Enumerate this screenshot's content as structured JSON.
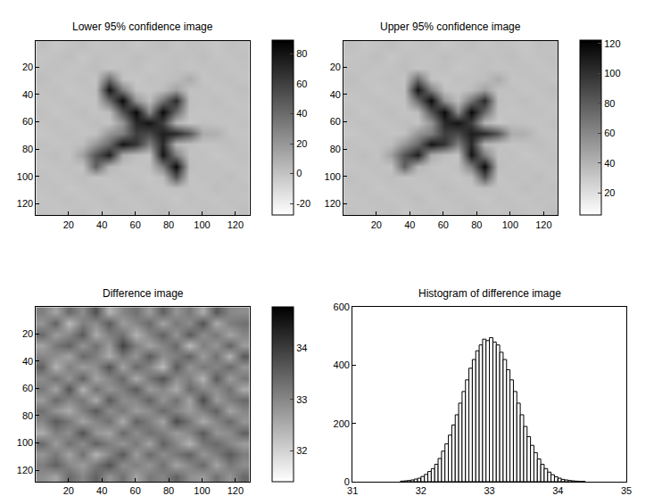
{
  "chart_data": [
    {
      "type": "heatmap",
      "title": "Lower 95% confidence image",
      "x": [
        4.5,
        12.5,
        20.5,
        28.5,
        36.5,
        44.5,
        52.5,
        60.5,
        68.5,
        76.5,
        84.5,
        92.5,
        100.5,
        108.5,
        116.5,
        124.5
      ],
      "y": [
        4.5,
        12.5,
        20.5,
        28.5,
        36.5,
        44.5,
        52.5,
        60.5,
        68.5,
        76.5,
        84.5,
        92.5,
        100.5,
        108.5,
        116.5,
        124.5
      ],
      "z": [
        [
          1,
          -2,
          0,
          2,
          -1,
          0,
          1,
          -2,
          0,
          2,
          -1,
          1,
          0,
          -2,
          1,
          0
        ],
        [
          -1,
          0,
          2,
          -2,
          1,
          0,
          -1,
          2,
          0,
          -1,
          1,
          0,
          2,
          -1,
          0,
          1
        ],
        [
          0,
          1,
          -1,
          0,
          2,
          -1,
          0,
          1,
          -2,
          0,
          1,
          -1,
          0,
          1,
          -1,
          0
        ],
        [
          2,
          -1,
          0,
          1,
          -1,
          40,
          0,
          -2,
          1,
          0,
          2,
          10,
          -1,
          0,
          1,
          -1
        ],
        [
          0,
          1,
          -2,
          0,
          1,
          80,
          30,
          0,
          -1,
          2,
          15,
          0,
          1,
          -1,
          0,
          2
        ],
        [
          -1,
          0,
          1,
          -1,
          0,
          40,
          85,
          20,
          2,
          35,
          70,
          1,
          0,
          2,
          -1,
          0
        ],
        [
          1,
          -2,
          0,
          2,
          -1,
          2,
          50,
          85,
          25,
          85,
          40,
          0,
          -1,
          0,
          1,
          -1
        ],
        [
          0,
          1,
          -1,
          0,
          2,
          -1,
          20,
          70,
          80,
          60,
          5,
          -2,
          1,
          0,
          -1,
          1
        ],
        [
          -2,
          0,
          1,
          -1,
          0,
          20,
          30,
          60,
          55,
          75,
          70,
          50,
          10,
          8,
          0,
          -1
        ],
        [
          1,
          -1,
          0,
          2,
          20,
          40,
          80,
          65,
          30,
          70,
          5,
          1,
          -1,
          0,
          2,
          0
        ],
        [
          0,
          2,
          -1,
          15,
          50,
          75,
          10,
          2,
          -1,
          80,
          30,
          0,
          1,
          -2,
          0,
          1
        ],
        [
          -1,
          0,
          1,
          -1,
          45,
          5,
          0,
          -1,
          1,
          30,
          85,
          2,
          0,
          1,
          -1,
          0
        ],
        [
          1,
          -1,
          0,
          2,
          -1,
          0,
          1,
          0,
          -2,
          2,
          50,
          -1,
          1,
          0,
          2,
          -1
        ],
        [
          0,
          1,
          -2,
          0,
          1,
          -1,
          0,
          2,
          0,
          -1,
          1,
          0,
          -1,
          2,
          0,
          1
        ],
        [
          -1,
          0,
          1,
          -1,
          0,
          2,
          -1,
          0,
          1,
          0,
          -2,
          1,
          0,
          -1,
          1,
          0
        ],
        [
          0,
          -1,
          0,
          1,
          -2,
          0,
          1,
          -1,
          0,
          2,
          0,
          -1,
          1,
          0,
          -1,
          2
        ]
      ],
      "xlim": [
        0.5,
        128.5
      ],
      "ylim": [
        128.5,
        0.5
      ],
      "xticks": [
        20,
        40,
        60,
        80,
        100,
        120
      ],
      "yticks": [
        20,
        40,
        60,
        80,
        100,
        120
      ],
      "colorbar": {
        "range": [
          -28,
          89
        ],
        "ticks": [
          -20,
          0,
          20,
          40,
          60,
          80
        ]
      }
    },
    {
      "type": "heatmap",
      "title": "Upper 95% confidence image",
      "x": [
        4.5,
        12.5,
        20.5,
        28.5,
        36.5,
        44.5,
        52.5,
        60.5,
        68.5,
        76.5,
        84.5,
        92.5,
        100.5,
        108.5,
        116.5,
        124.5
      ],
      "y": [
        4.5,
        12.5,
        20.5,
        28.5,
        36.5,
        44.5,
        52.5,
        60.5,
        68.5,
        76.5,
        84.5,
        92.5,
        100.5,
        108.5,
        116.5,
        124.5
      ],
      "z": [
        [
          34,
          31,
          33,
          35,
          32,
          33,
          34,
          31,
          33,
          35,
          32,
          34,
          33,
          31,
          34,
          33
        ],
        [
          32,
          33,
          35,
          31,
          34,
          33,
          32,
          35,
          33,
          32,
          34,
          33,
          35,
          32,
          33,
          34
        ],
        [
          33,
          34,
          32,
          33,
          35,
          32,
          33,
          34,
          31,
          33,
          34,
          32,
          33,
          34,
          32,
          33
        ],
        [
          35,
          32,
          33,
          34,
          32,
          73,
          33,
          31,
          34,
          33,
          35,
          43,
          32,
          33,
          34,
          32
        ],
        [
          33,
          34,
          31,
          33,
          34,
          113,
          63,
          33,
          32,
          35,
          48,
          33,
          34,
          32,
          33,
          35
        ],
        [
          32,
          33,
          34,
          32,
          33,
          73,
          118,
          53,
          35,
          68,
          103,
          34,
          33,
          35,
          32,
          33
        ],
        [
          34,
          31,
          33,
          35,
          32,
          35,
          83,
          118,
          58,
          118,
          73,
          33,
          32,
          33,
          34,
          32
        ],
        [
          33,
          34,
          32,
          33,
          35,
          32,
          53,
          103,
          113,
          93,
          38,
          31,
          34,
          33,
          32,
          34
        ],
        [
          31,
          33,
          34,
          32,
          33,
          53,
          63,
          93,
          88,
          108,
          103,
          83,
          43,
          41,
          33,
          32
        ],
        [
          34,
          32,
          33,
          35,
          53,
          73,
          113,
          98,
          63,
          103,
          38,
          34,
          32,
          33,
          35,
          33
        ],
        [
          33,
          35,
          32,
          48,
          83,
          108,
          43,
          35,
          32,
          113,
          63,
          33,
          34,
          31,
          33,
          34
        ],
        [
          32,
          33,
          34,
          32,
          78,
          38,
          33,
          32,
          34,
          63,
          118,
          35,
          33,
          34,
          32,
          33
        ],
        [
          34,
          32,
          33,
          35,
          32,
          33,
          34,
          33,
          31,
          35,
          83,
          32,
          34,
          33,
          35,
          32
        ],
        [
          33,
          34,
          31,
          33,
          34,
          32,
          33,
          35,
          33,
          32,
          34,
          33,
          32,
          35,
          33,
          34
        ],
        [
          32,
          33,
          34,
          32,
          33,
          35,
          32,
          33,
          34,
          33,
          31,
          34,
          33,
          32,
          34,
          33
        ],
        [
          33,
          32,
          33,
          34,
          31,
          33,
          34,
          32,
          33,
          35,
          33,
          32,
          34,
          33,
          32,
          35
        ]
      ],
      "xlim": [
        0.5,
        128.5
      ],
      "ylim": [
        128.5,
        0.5
      ],
      "xticks": [
        20,
        40,
        60,
        80,
        100,
        120
      ],
      "yticks": [
        20,
        40,
        60,
        80,
        100,
        120
      ],
      "colorbar": {
        "range": [
          5,
          122
        ],
        "ticks": [
          20,
          40,
          60,
          80,
          100,
          120
        ]
      }
    },
    {
      "type": "heatmap",
      "title": "Difference image",
      "x": [
        4.5,
        12.5,
        20.5,
        28.5,
        36.5,
        44.5,
        52.5,
        60.5,
        68.5,
        76.5,
        84.5,
        92.5,
        100.5,
        108.5,
        116.5,
        124.5
      ],
      "y": [
        4.5,
        12.5,
        20.5,
        28.5,
        36.5,
        44.5,
        52.5,
        60.5,
        68.5,
        76.5,
        84.5,
        92.5,
        100.5,
        108.5,
        116.5,
        124.5
      ],
      "z": [
        [
          33.1,
          32.6,
          33.4,
          32.9,
          33.7,
          32.4,
          33.0,
          33.3,
          32.7,
          33.5,
          32.8,
          33.2,
          32.5,
          33.6,
          33.0,
          32.9
        ],
        [
          32.8,
          33.5,
          32.3,
          33.1,
          32.9,
          33.6,
          32.7,
          33.0,
          33.4,
          32.6,
          33.2,
          32.9,
          33.7,
          32.5,
          33.1,
          33.3
        ],
        [
          33.4,
          32.7,
          33.0,
          33.6,
          32.5,
          33.1,
          33.3,
          32.4,
          33.0,
          33.5,
          32.8,
          33.6,
          32.9,
          33.2,
          32.6,
          33.0
        ],
        [
          32.6,
          33.2,
          33.5,
          32.8,
          33.3,
          32.7,
          33.9,
          33.1,
          32.6,
          33.0,
          33.4,
          32.3,
          33.1,
          32.8,
          33.5,
          32.7
        ],
        [
          33.0,
          32.9,
          32.6,
          33.4,
          33.1,
          32.5,
          33.2,
          32.8,
          33.6,
          32.9,
          33.1,
          33.5,
          32.7,
          33.3,
          32.4,
          33.6
        ],
        [
          33.5,
          32.4,
          33.1,
          32.7,
          32.9,
          33.7,
          32.6,
          33.4,
          33.0,
          32.3,
          33.6,
          32.8,
          33.2,
          33.0,
          33.4,
          32.8
        ],
        [
          32.9,
          33.3,
          32.8,
          33.5,
          32.6,
          33.0,
          33.4,
          32.5,
          33.2,
          33.7,
          32.9,
          33.1,
          32.4,
          33.6,
          32.7,
          33.2
        ],
        [
          33.2,
          32.6,
          33.7,
          32.4,
          33.3,
          32.8,
          33.1,
          33.6,
          32.7,
          33.0,
          32.5,
          33.4,
          33.0,
          32.9,
          33.3,
          32.5
        ],
        [
          32.7,
          33.4,
          33.0,
          33.2,
          32.5,
          33.6,
          32.9,
          33.0,
          33.5,
          32.8,
          33.3,
          32.6,
          33.8,
          32.7,
          33.1,
          33.4
        ],
        [
          33.3,
          32.8,
          32.5,
          33.1,
          33.6,
          32.9,
          33.2,
          32.7,
          32.9,
          33.4,
          33.0,
          32.7,
          33.1,
          33.5,
          32.6,
          33.0
        ],
        [
          33.0,
          33.6,
          33.2,
          32.6,
          33.0,
          33.3,
          32.5,
          33.5,
          33.1,
          32.6,
          33.8,
          33.2,
          32.5,
          33.0,
          33.4,
          32.8
        ],
        [
          32.5,
          33.1,
          32.9,
          33.7,
          32.8,
          32.6,
          33.4,
          32.9,
          33.3,
          33.1,
          32.7,
          33.0,
          33.6,
          32.8,
          32.9,
          33.5
        ],
        [
          33.4,
          32.7,
          33.3,
          32.9,
          33.5,
          33.1,
          32.8,
          33.2,
          32.6,
          33.5,
          33.0,
          32.4,
          33.2,
          33.4,
          33.0,
          32.7
        ],
        [
          32.8,
          33.2,
          32.6,
          33.3,
          32.4,
          33.0,
          33.6,
          32.7,
          33.4,
          32.9,
          33.2,
          33.5,
          32.8,
          33.1,
          33.6,
          33.1
        ],
        [
          33.1,
          33.5,
          33.0,
          32.7,
          33.2,
          33.7,
          32.9,
          33.1,
          32.8,
          33.3,
          32.6,
          33.0,
          33.4,
          32.6,
          33.2,
          32.9
        ],
        [
          32.9,
          32.6,
          33.4,
          33.0,
          33.5,
          32.8,
          33.3,
          32.6,
          33.2,
          33.0,
          33.5,
          32.9,
          32.7,
          33.3,
          32.8,
          33.4
        ]
      ],
      "xlim": [
        0.5,
        128.5
      ],
      "ylim": [
        128.5,
        0.5
      ],
      "xticks": [
        20,
        40,
        60,
        80,
        100,
        120
      ],
      "yticks": [
        20,
        40,
        60,
        80,
        100,
        120
      ],
      "colorbar": {
        "range": [
          31.4,
          34.8
        ],
        "ticks": [
          32,
          33,
          34
        ]
      }
    },
    {
      "type": "histogram",
      "title": "Histogram of difference image",
      "bins": [
        31.7,
        31.75,
        31.8,
        31.85,
        31.9,
        31.95,
        32.0,
        32.05,
        32.1,
        32.15,
        32.2,
        32.25,
        32.3,
        32.35,
        32.4,
        32.45,
        32.5,
        32.55,
        32.6,
        32.65,
        32.7,
        32.75,
        32.8,
        32.85,
        32.9,
        32.95,
        33.0,
        33.05,
        33.1,
        33.15,
        33.2,
        33.25,
        33.3,
        33.35,
        33.4,
        33.45,
        33.5,
        33.55,
        33.6,
        33.65,
        33.7,
        33.75,
        33.8,
        33.85,
        33.9,
        33.95,
        34.0,
        34.05,
        34.1,
        34.15,
        34.2,
        34.25,
        34.3,
        34.35,
        34.4
      ],
      "counts": [
        2,
        3,
        4,
        6,
        9,
        12,
        18,
        25,
        35,
        45,
        60,
        80,
        105,
        130,
        160,
        195,
        230,
        270,
        310,
        350,
        390,
        420,
        450,
        470,
        490,
        485,
        495,
        480,
        470,
        445,
        420,
        385,
        350,
        310,
        270,
        230,
        190,
        155,
        125,
        100,
        78,
        60,
        45,
        33,
        24,
        17,
        12,
        8,
        6,
        4,
        3,
        2,
        1,
        1
      ],
      "color": "#ffffff",
      "xlim": [
        31,
        35
      ],
      "ylim": [
        0,
        600
      ],
      "xticks": [
        31,
        32,
        33,
        34,
        35
      ],
      "yticks": [
        0,
        200,
        400,
        600
      ]
    }
  ]
}
